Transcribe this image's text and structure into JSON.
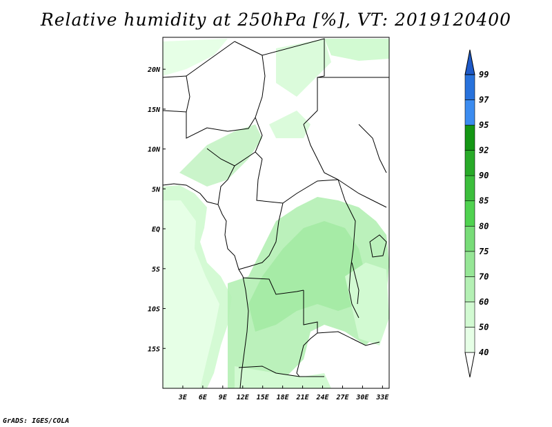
{
  "title": "Relative humidity at 250hPa [%], VT: 2019120400",
  "credit": "GrADS: IGES/COLA",
  "map": {
    "lon_range": [
      0,
      34
    ],
    "lat_range": [
      -20,
      24
    ],
    "lat_ticks": [
      {
        "value": 20,
        "label": "20N"
      },
      {
        "value": 15,
        "label": "15N"
      },
      {
        "value": 10,
        "label": "10N"
      },
      {
        "value": 5,
        "label": "5N"
      },
      {
        "value": 0,
        "label": "EQ"
      },
      {
        "value": -5,
        "label": "5S"
      },
      {
        "value": -10,
        "label": "10S"
      },
      {
        "value": -15,
        "label": "15S"
      }
    ],
    "lon_ticks": [
      {
        "value": 3,
        "label": "3E"
      },
      {
        "value": 6,
        "label": "6E"
      },
      {
        "value": 9,
        "label": "9E"
      },
      {
        "value": 12,
        "label": "12E"
      },
      {
        "value": 15,
        "label": "15E"
      },
      {
        "value": 18,
        "label": "18E"
      },
      {
        "value": 21,
        "label": "21E"
      },
      {
        "value": 24,
        "label": "24E"
      },
      {
        "value": 27,
        "label": "27E"
      },
      {
        "value": 30,
        "label": "30E"
      },
      {
        "value": 33,
        "label": "33E"
      }
    ]
  },
  "colorbar": {
    "levels": [
      "40",
      "50",
      "60",
      "70",
      "75",
      "80",
      "85",
      "90",
      "92",
      "95",
      "97",
      "99"
    ],
    "colors": [
      "#e6ffe6",
      "#d2fad2",
      "#b4f0b4",
      "#96e696",
      "#78dc78",
      "#50d250",
      "#3cbe3c",
      "#28aa28",
      "#149614",
      "#3c8cf0",
      "#2872dc",
      "#1e5ac8"
    ]
  },
  "colors": {
    "land": "#ffffff",
    "light_green": "#d2fad2",
    "mid_green": "#b4f0b4",
    "border": "#000000"
  }
}
